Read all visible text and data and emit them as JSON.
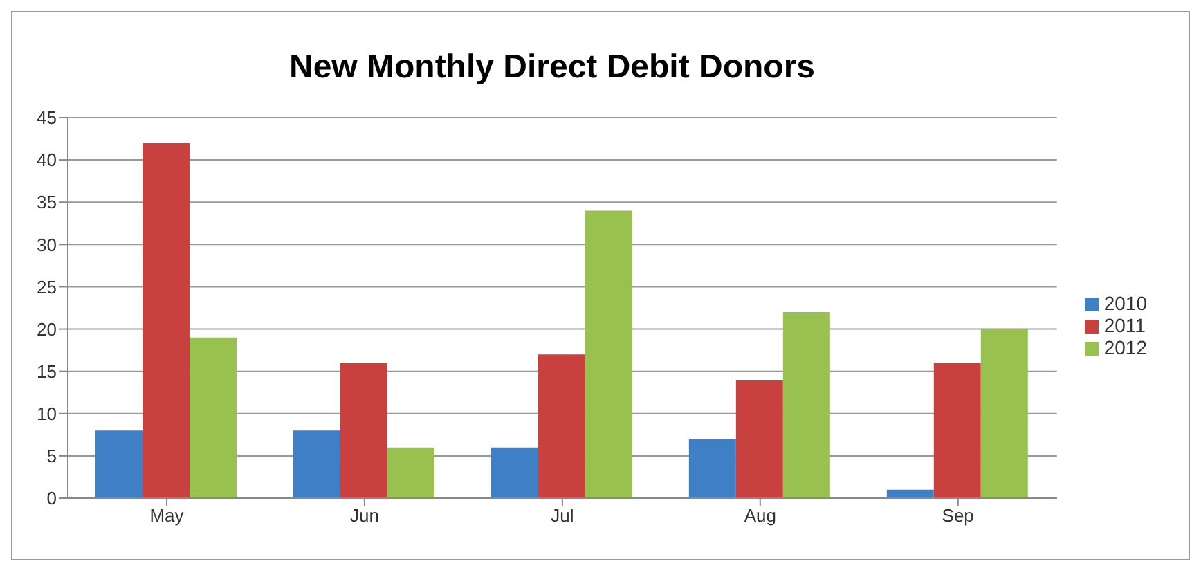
{
  "chart_data": {
    "type": "bar",
    "title": "New Monthly Direct Debit Donors",
    "categories": [
      "May",
      "Jun",
      "Jul",
      "Aug",
      "Sep"
    ],
    "series": [
      {
        "name": "2010",
        "color": "#3f7fc6",
        "values": [
          8,
          8,
          6,
          7,
          1
        ]
      },
      {
        "name": "2011",
        "color": "#c8413e",
        "values": [
          42,
          16,
          17,
          14,
          16
        ]
      },
      {
        "name": "2012",
        "color": "#98c14f",
        "values": [
          19,
          6,
          34,
          22,
          20
        ]
      }
    ],
    "ylim": [
      0,
      45
    ],
    "yticks": [
      0,
      5,
      10,
      15,
      20,
      25,
      30,
      35,
      40,
      45
    ],
    "grid": "y",
    "legend": "right"
  }
}
